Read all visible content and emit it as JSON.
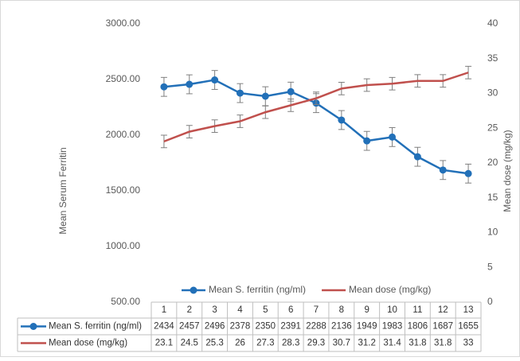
{
  "chart_data": {
    "type": "line",
    "categories": [
      "1",
      "2",
      "3",
      "4",
      "5",
      "6",
      "7",
      "8",
      "9",
      "10",
      "11",
      "12",
      "13"
    ],
    "y_label": "Mean Serum Ferritin",
    "y2_label": "Mean dose (mg/kg)",
    "ylim": [
      500,
      3000
    ],
    "yticks": [
      {
        "value": 500,
        "label": "500.00"
      },
      {
        "value": 1000,
        "label": "1000.00"
      },
      {
        "value": 1500,
        "label": "1500.00"
      },
      {
        "value": 2000,
        "label": "2000.00"
      },
      {
        "value": 2500,
        "label": "2500.00"
      },
      {
        "value": 3000,
        "label": "3000.00"
      }
    ],
    "y2lim": [
      0,
      40
    ],
    "y2ticks": [
      0,
      5,
      10,
      15,
      20,
      25,
      30,
      35,
      40
    ],
    "legend": "bottom",
    "series": [
      {
        "name": "Mean S. ferritin (ng/ml)",
        "color": "#2270b8",
        "marker": true,
        "error": 85,
        "values": [
          2434,
          2457,
          2496,
          2378,
          2350,
          2391,
          2288,
          2136,
          1949,
          1983,
          1806,
          1687,
          1655
        ]
      },
      {
        "name": "Mean dose (mg/kg)",
        "color": "#c0504d",
        "axis": "y2",
        "marker": false,
        "error": 0.9,
        "values": [
          23.1,
          24.5,
          25.3,
          26,
          27.3,
          28.3,
          29.3,
          30.7,
          31.2,
          31.4,
          31.8,
          31.8,
          33
        ]
      }
    ]
  }
}
